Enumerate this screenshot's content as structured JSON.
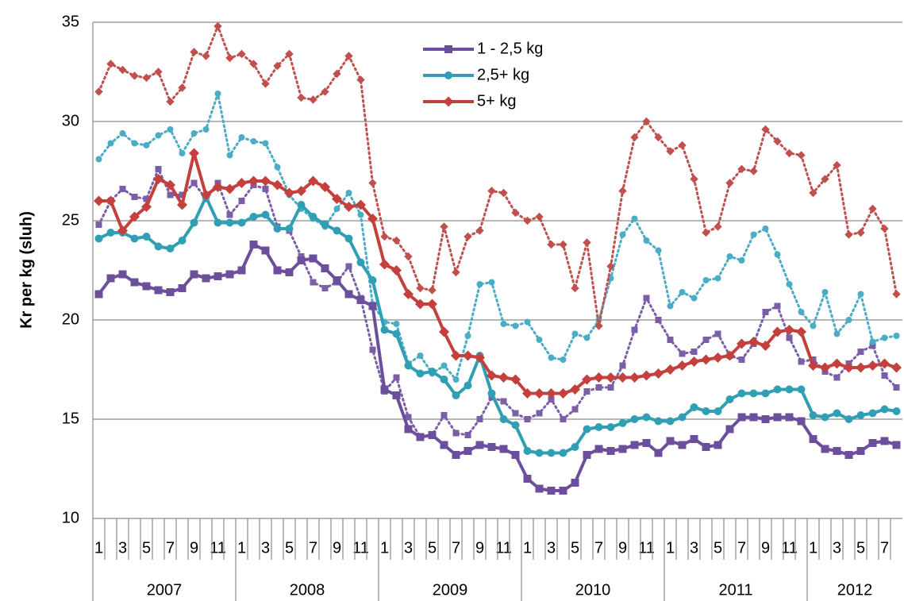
{
  "chart_data": {
    "type": "line",
    "y_label": "Kr per kg (sluh)",
    "ylim": [
      10,
      35
    ],
    "yticks": [
      10,
      15,
      20,
      25,
      30,
      35
    ],
    "grid": true,
    "legend": "top",
    "groups": [
      {
        "label": "2007",
        "categories": [
          "1",
          null,
          "3",
          null,
          "5",
          null,
          "7",
          null,
          "9",
          null,
          "11",
          null
        ]
      },
      {
        "label": "2008",
        "categories": [
          "1",
          null,
          "3",
          null,
          "5",
          null,
          "7",
          null,
          "9",
          null,
          "11",
          null
        ]
      },
      {
        "label": "2009",
        "categories": [
          "1",
          null,
          "3",
          null,
          "5",
          null,
          "7",
          null,
          "9",
          null,
          "11",
          null
        ]
      },
      {
        "label": "2010",
        "categories": [
          "1",
          null,
          "3",
          null,
          "5",
          null,
          "7",
          null,
          "9",
          null,
          "11",
          null
        ]
      },
      {
        "label": "2011",
        "categories": [
          "1",
          null,
          "3",
          null,
          "5",
          null,
          "7",
          null,
          "9",
          null,
          "11",
          null
        ]
      },
      {
        "label": "2012",
        "categories": [
          "1",
          null,
          "3",
          null,
          "5",
          null,
          "7",
          null
        ]
      }
    ],
    "series": [
      {
        "color": "#7a5fa8",
        "dash": true,
        "marker": "square",
        "values": [
          24.8,
          26.0,
          26.6,
          26.2,
          26.1,
          27.6,
          26.3,
          26.3,
          26.9,
          26.1,
          26.9,
          25.3,
          26.0,
          26.8,
          26.6,
          24.7,
          24.5,
          23.2,
          21.9,
          21.6,
          21.9,
          22.7,
          21.1,
          18.5,
          16.4,
          17.1,
          15.1,
          14.1,
          14.2,
          15.2,
          14.3,
          14.2,
          15.0,
          16.1,
          15.9,
          15.3,
          15.0,
          15.3,
          16.0,
          15.0,
          15.5,
          16.4,
          16.6,
          16.6,
          17.7,
          19.5,
          21.1,
          20.0,
          19.0,
          18.3,
          18.4,
          19.0,
          19.3,
          18.2,
          18.0,
          18.8,
          20.4,
          20.7,
          19.1,
          17.9,
          18.0,
          17.4,
          17.1,
          17.8,
          18.4,
          18.7,
          17.2,
          16.6
        ]
      },
      {
        "color": "#4bacc6",
        "dash": true,
        "marker": "circle",
        "values": [
          28.1,
          28.9,
          29.4,
          28.9,
          28.8,
          29.3,
          29.6,
          28.4,
          29.4,
          29.6,
          31.4,
          28.3,
          29.2,
          29.0,
          28.9,
          27.7,
          26.3,
          25.6,
          25.1,
          24.7,
          25.6,
          26.4,
          25.3,
          20.8,
          19.9,
          19.8,
          17.8,
          18.2,
          17.3,
          17.7,
          17.0,
          19.2,
          21.8,
          21.9,
          19.8,
          19.7,
          19.9,
          19.0,
          18.1,
          18.0,
          19.3,
          19.1,
          20.0,
          22.1,
          24.3,
          25.1,
          24.0,
          23.5,
          20.7,
          21.4,
          21.1,
          22.0,
          22.1,
          23.2,
          23.0,
          24.3,
          24.6,
          23.3,
          21.8,
          20.4,
          19.7,
          21.4,
          19.3,
          20.0,
          21.3,
          18.9,
          19.1,
          19.2
        ]
      },
      {
        "color": "#c0504d",
        "dash": true,
        "marker": "diamond",
        "values": [
          31.5,
          32.9,
          32.6,
          32.3,
          32.2,
          32.5,
          31.0,
          31.7,
          33.5,
          33.3,
          34.8,
          33.2,
          33.4,
          32.9,
          31.9,
          32.8,
          33.4,
          31.2,
          31.1,
          31.5,
          32.4,
          33.3,
          32.1,
          26.9,
          24.2,
          24.0,
          23.2,
          21.6,
          21.5,
          24.7,
          22.4,
          24.2,
          24.5,
          26.5,
          26.4,
          25.4,
          25.0,
          25.2,
          23.8,
          23.8,
          21.6,
          23.9,
          19.7,
          22.7,
          26.5,
          29.2,
          30.0,
          29.2,
          28.5,
          28.8,
          27.1,
          24.4,
          24.7,
          26.9,
          27.6,
          27.5,
          29.6,
          29.0,
          28.4,
          28.3,
          26.4,
          27.1,
          27.8,
          24.3,
          24.4,
          25.6,
          24.6,
          21.3
        ]
      },
      {
        "name": "1 - 2,5 kg",
        "color": "#6c4f9c",
        "dash": false,
        "marker": "square",
        "values": [
          21.3,
          22.1,
          22.3,
          21.9,
          21.7,
          21.5,
          21.4,
          21.6,
          22.3,
          22.1,
          22.2,
          22.3,
          22.5,
          23.8,
          23.5,
          22.5,
          22.4,
          23.0,
          23.1,
          22.6,
          22.0,
          21.3,
          21.0,
          20.7,
          16.5,
          16.2,
          14.5,
          14.1,
          14.2,
          13.7,
          13.2,
          13.4,
          13.7,
          13.6,
          13.5,
          13.2,
          12.0,
          11.5,
          11.4,
          11.4,
          11.8,
          13.2,
          13.5,
          13.4,
          13.5,
          13.7,
          13.8,
          13.3,
          13.9,
          13.7,
          14.0,
          13.6,
          13.7,
          14.5,
          15.1,
          15.1,
          15.0,
          15.1,
          15.1,
          14.9,
          14.0,
          13.5,
          13.4,
          13.2,
          13.4,
          13.8,
          13.9,
          13.7
        ]
      },
      {
        "name": "2,5+ kg",
        "color": "#319fb3",
        "dash": false,
        "marker": "circle",
        "values": [
          24.1,
          24.4,
          24.4,
          24.1,
          24.2,
          23.7,
          23.6,
          24.0,
          24.9,
          26.2,
          24.9,
          24.9,
          24.9,
          25.2,
          25.3,
          24.6,
          24.6,
          25.8,
          25.2,
          24.8,
          24.5,
          24.1,
          22.9,
          22.0,
          19.5,
          19.3,
          17.7,
          17.3,
          17.4,
          17.0,
          16.2,
          16.7,
          18.2,
          16.3,
          15.0,
          14.7,
          13.4,
          13.3,
          13.3,
          13.3,
          13.6,
          14.5,
          14.6,
          14.6,
          14.8,
          15.0,
          15.1,
          14.9,
          14.9,
          15.1,
          15.6,
          15.4,
          15.4,
          16.0,
          16.3,
          16.3,
          16.3,
          16.5,
          16.5,
          16.5,
          15.2,
          15.1,
          15.3,
          15.0,
          15.2,
          15.3,
          15.5,
          15.4
        ]
      },
      {
        "name": "5+ kg",
        "color": "#c4403d",
        "dash": false,
        "marker": "diamond",
        "values": [
          26.0,
          26.0,
          24.5,
          25.2,
          25.7,
          27.1,
          26.8,
          25.8,
          28.4,
          26.3,
          26.7,
          26.6,
          26.9,
          27.0,
          27.0,
          26.8,
          26.4,
          26.5,
          27.0,
          26.7,
          26.1,
          25.7,
          25.8,
          25.1,
          22.8,
          22.5,
          21.3,
          20.8,
          20.8,
          19.4,
          18.2,
          18.2,
          18.1,
          17.2,
          17.1,
          17.0,
          16.3,
          16.3,
          16.3,
          16.3,
          16.5,
          17.0,
          17.1,
          17.1,
          17.1,
          17.1,
          17.2,
          17.3,
          17.5,
          17.7,
          17.9,
          18.0,
          18.1,
          18.2,
          18.8,
          18.9,
          18.7,
          19.4,
          19.5,
          19.4,
          17.7,
          17.6,
          17.8,
          17.6,
          17.6,
          17.7,
          17.8,
          17.6
        ]
      }
    ]
  }
}
